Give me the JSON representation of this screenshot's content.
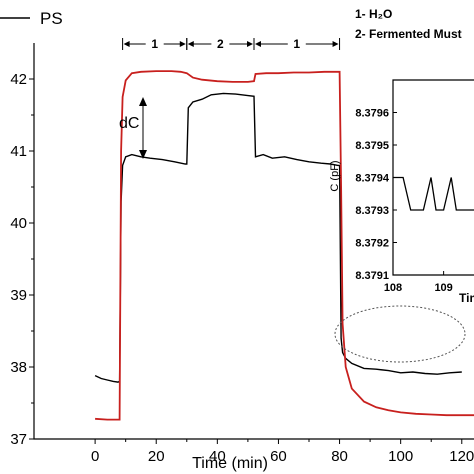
{
  "colors": {
    "series_black": "#000000",
    "series_red": "#c8201e",
    "ellipse": "#555555"
  },
  "legend": {
    "item": "PS",
    "notes": [
      "1- H₂O",
      "2- Fermented Must"
    ]
  },
  "annotations": {
    "dc_label": "dC",
    "segments": [
      {
        "label": "1",
        "x_start": 9,
        "x_end": 30
      },
      {
        "label": "2",
        "x_start": 30,
        "x_end": 52
      },
      {
        "label": "1",
        "x_start": 52,
        "x_end": 80
      }
    ]
  },
  "chart_data": [
    {
      "type": "line",
      "title": "",
      "xlabel": "Time (min)",
      "ylabel": "",
      "xlim": [
        -20,
        124
      ],
      "ylim": [
        37,
        42.5
      ],
      "x_ticks": [
        0,
        20,
        40,
        60,
        80,
        100,
        120
      ],
      "y_ticks": [
        37,
        38,
        39,
        40,
        41,
        42
      ],
      "grid": false,
      "legend_position": "top-left",
      "series": [
        {
          "name": "PS",
          "color": "#000000",
          "points": [
            [
              0,
              37.88
            ],
            [
              2,
              37.84
            ],
            [
              4,
              37.82
            ],
            [
              6,
              37.8
            ],
            [
              7.5,
              37.79
            ],
            [
              8,
              37.8
            ],
            [
              8.5,
              40.3
            ],
            [
              9,
              40.8
            ],
            [
              10,
              40.92
            ],
            [
              12,
              40.95
            ],
            [
              15,
              40.92
            ],
            [
              18,
              40.9
            ],
            [
              22,
              40.88
            ],
            [
              26,
              40.85
            ],
            [
              29.5,
              40.82
            ],
            [
              30,
              40.82
            ],
            [
              30.5,
              41.6
            ],
            [
              32,
              41.68
            ],
            [
              35,
              41.72
            ],
            [
              38,
              41.78
            ],
            [
              42,
              41.8
            ],
            [
              46,
              41.79
            ],
            [
              50,
              41.77
            ],
            [
              52,
              41.76
            ],
            [
              52.5,
              40.92
            ],
            [
              55,
              40.95
            ],
            [
              58,
              40.9
            ],
            [
              62,
              40.92
            ],
            [
              66,
              40.88
            ],
            [
              70,
              40.85
            ],
            [
              74,
              40.83
            ],
            [
              77,
              40.82
            ],
            [
              79.5,
              40.8
            ],
            [
              80,
              40.8
            ],
            [
              80.5,
              38.4
            ],
            [
              81,
              38.2
            ],
            [
              82,
              38.12
            ],
            [
              84,
              38.05
            ],
            [
              88,
              37.98
            ],
            [
              92,
              37.97
            ],
            [
              96,
              37.95
            ],
            [
              100,
              37.92
            ],
            [
              104,
              37.93
            ],
            [
              108,
              37.91
            ],
            [
              112,
              37.9
            ],
            [
              116,
              37.92
            ],
            [
              120,
              37.93
            ]
          ]
        },
        {
          "name": "",
          "color": "#c8201e",
          "points": [
            [
              0,
              37.28
            ],
            [
              4,
              37.27
            ],
            [
              8,
              37.27
            ],
            [
              8.5,
              41.0
            ],
            [
              9,
              41.75
            ],
            [
              10,
              41.98
            ],
            [
              12,
              42.08
            ],
            [
              15,
              42.1
            ],
            [
              20,
              42.11
            ],
            [
              25,
              42.11
            ],
            [
              28,
              42.1
            ],
            [
              30,
              42.08
            ],
            [
              32,
              42.02
            ],
            [
              35,
              41.99
            ],
            [
              40,
              41.97
            ],
            [
              45,
              41.96
            ],
            [
              50,
              41.96
            ],
            [
              52,
              41.97
            ],
            [
              52.5,
              42.07
            ],
            [
              56,
              42.08
            ],
            [
              60,
              42.08
            ],
            [
              65,
              42.09
            ],
            [
              70,
              42.09
            ],
            [
              75,
              42.1
            ],
            [
              80,
              42.1
            ],
            [
              80.5,
              40.5
            ],
            [
              81,
              38.6
            ],
            [
              82,
              38.0
            ],
            [
              84,
              37.7
            ],
            [
              88,
              37.52
            ],
            [
              92,
              37.44
            ],
            [
              96,
              37.4
            ],
            [
              100,
              37.37
            ],
            [
              105,
              37.35
            ],
            [
              110,
              37.34
            ],
            [
              115,
              37.33
            ],
            [
              120,
              37.33
            ],
            [
              124,
              37.33
            ]
          ]
        }
      ]
    },
    {
      "type": "line",
      "title": "",
      "xlabel": "Tim",
      "ylabel": "C (pF)",
      "xlim": [
        108,
        109.6
      ],
      "ylim": [
        8.3791,
        8.3797
      ],
      "x_ticks": [
        108,
        109
      ],
      "y_ticks": [
        8.3791,
        8.3792,
        8.3793,
        8.3794,
        8.3795,
        8.3796
      ],
      "y_tick_labels": [
        "8.3791",
        "8.3792",
        "8.3793",
        "8.3794",
        "8.3795",
        "8.3796"
      ],
      "grid": false,
      "series": [
        {
          "name": "",
          "color": "#000000",
          "points": [
            [
              108,
              8.3794
            ],
            [
              108.2,
              8.3794
            ],
            [
              108.35,
              8.3793
            ],
            [
              108.6,
              8.3793
            ],
            [
              108.75,
              8.3794
            ],
            [
              108.85,
              8.3793
            ],
            [
              109.0,
              8.3793
            ],
            [
              109.15,
              8.3794
            ],
            [
              109.25,
              8.3793
            ],
            [
              109.6,
              8.3793
            ]
          ]
        }
      ]
    }
  ]
}
